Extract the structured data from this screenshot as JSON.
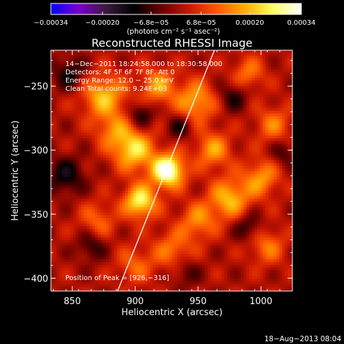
{
  "chart_data": {
    "type": "heatmap",
    "title": "Reconstructed RHESSI Image",
    "xlabel": "Heliocentric X (arcsec)",
    "ylabel": "Heliocentric Y (arcsec)",
    "xlim": [
      833,
      1025
    ],
    "ylim": [
      -410,
      -222
    ],
    "x_ticks": [
      850,
      900,
      950,
      1000
    ],
    "x_tick_labels": [
      "850",
      "900",
      "950",
      "1000"
    ],
    "y_ticks": [
      -250,
      -300,
      -350,
      -400
    ],
    "y_tick_labels": [
      "−250",
      "−300",
      "−350",
      "−400"
    ],
    "colorbar": {
      "range": [
        -0.00034,
        0.00034
      ],
      "tick_values": [
        -0.00034,
        -0.0002,
        -6.8e-05,
        6.8e-05,
        0.0002,
        0.00034
      ],
      "tick_labels": [
        "−0.00034",
        "−0.00020",
        "−6.8e−05",
        "6.8e−05",
        "0.00020",
        "0.00034"
      ],
      "unit_label": "(photons cm⁻² s⁻¹ asec⁻²)",
      "colormap": [
        "#0000ff",
        "#7a00cc",
        "#3a1a3a",
        "#000000",
        "#6a0000",
        "#cc1800",
        "#ff5a00",
        "#ffb000",
        "#ffff66",
        "#ffffff"
      ]
    },
    "annotations": [
      "14−Dec−2011 18:24:58.000 to 18:30:58.000",
      "Detectors: 4F 5F 6F 7F 8F, Att 0",
      "Energy Range: 12.0 − 25.0 keV",
      "Clean     Total counts: 9.24E+03"
    ],
    "peak_label": "Position of Peak = [926,−316]",
    "peak": [
      926,
      -316
    ],
    "limb_line": [
      [
        886,
        -410
      ],
      [
        963,
        -222
      ]
    ],
    "blobs": [
      {
        "x": 926,
        "y": -316,
        "v": 1.0,
        "s": 9
      },
      {
        "x": 904,
        "y": -340,
        "v": 0.75,
        "s": 9
      },
      {
        "x": 899,
        "y": -300,
        "v": 0.65,
        "s": 11
      },
      {
        "x": 875,
        "y": -258,
        "v": 0.55,
        "s": 12
      },
      {
        "x": 883,
        "y": -285,
        "v": 0.35,
        "s": 10
      },
      {
        "x": 918,
        "y": -250,
        "v": 0.45,
        "s": 10
      },
      {
        "x": 948,
        "y": -262,
        "v": 0.5,
        "s": 11
      },
      {
        "x": 962,
        "y": -300,
        "v": 0.45,
        "s": 10
      },
      {
        "x": 975,
        "y": -338,
        "v": 0.55,
        "s": 11
      },
      {
        "x": 1000,
        "y": -322,
        "v": 0.45,
        "s": 10
      },
      {
        "x": 1010,
        "y": -280,
        "v": 0.35,
        "s": 10
      },
      {
        "x": 950,
        "y": -355,
        "v": 0.4,
        "s": 10
      },
      {
        "x": 930,
        "y": -378,
        "v": 0.35,
        "s": 11
      },
      {
        "x": 870,
        "y": -355,
        "v": 0.3,
        "s": 10
      },
      {
        "x": 900,
        "y": -390,
        "v": 0.3,
        "s": 10
      },
      {
        "x": 1005,
        "y": -375,
        "v": 0.35,
        "s": 10
      },
      {
        "x": 990,
        "y": -240,
        "v": 0.35,
        "s": 9
      },
      {
        "x": 845,
        "y": -320,
        "v": -0.4,
        "s": 10
      },
      {
        "x": 848,
        "y": -240,
        "v": -0.35,
        "s": 9
      },
      {
        "x": 905,
        "y": -272,
        "v": -0.35,
        "s": 7
      },
      {
        "x": 935,
        "y": -282,
        "v": -0.3,
        "s": 7
      },
      {
        "x": 978,
        "y": -258,
        "v": -0.3,
        "s": 8
      },
      {
        "x": 990,
        "y": -360,
        "v": -0.3,
        "s": 8
      },
      {
        "x": 865,
        "y": -375,
        "v": -0.3,
        "s": 8
      },
      {
        "x": 940,
        "y": -395,
        "v": -0.25,
        "s": 8
      },
      {
        "x": 1018,
        "y": -302,
        "v": -0.25,
        "s": 7
      }
    ],
    "grid": false
  },
  "footer_timestamp": "18−Aug−2013 08:04"
}
